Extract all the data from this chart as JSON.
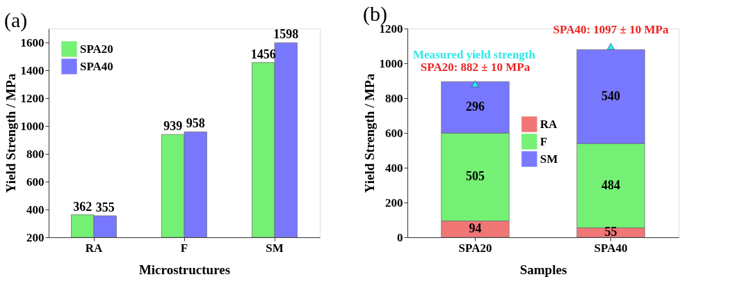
{
  "chart_data": [
    {
      "type": "bar",
      "title": "(a)",
      "xlabel": "Microstructures",
      "ylabel": "Yield Strength / MPa",
      "categories": [
        "RA",
        "F",
        "SM"
      ],
      "series": [
        {
          "name": "SPA20",
          "color": "#66f066",
          "values": [
            362,
            939,
            1456
          ]
        },
        {
          "name": "SPA40",
          "color": "#6a6aff",
          "values": [
            355,
            958,
            1598
          ]
        }
      ],
      "ylim": [
        200,
        1700
      ],
      "yticks": [
        200,
        400,
        600,
        800,
        1000,
        1200,
        1400,
        1600
      ],
      "data_labels": true,
      "legend": "top left",
      "grid": false
    },
    {
      "type": "bar",
      "title": "(b)",
      "xlabel": "Samples",
      "ylabel": "Yield Strength / MPa",
      "categories": [
        "SPA20",
        "SPA40"
      ],
      "stacked": true,
      "series": [
        {
          "name": "RA",
          "color": "#f06868",
          "values": [
            94,
            55
          ]
        },
        {
          "name": "F",
          "color": "#66f066",
          "values": [
            505,
            484
          ]
        },
        {
          "name": "SM",
          "color": "#6a6aff",
          "values": [
            296,
            540
          ]
        },
        {
          "name": "Measured yield strength",
          "type": "scatter",
          "marker": "triangle",
          "color": "#33e6e6",
          "values": [
            882,
            1097
          ],
          "value_labels": [
            null,
            null
          ]
        }
      ],
      "ylim": [
        0,
        1200
      ],
      "yticks": [
        0,
        200,
        400,
        600,
        800,
        1000,
        1200
      ],
      "data_labels": true,
      "legend": "center",
      "grid": false,
      "annotations": [
        {
          "text": "SPA20: 882 ± 10 MPa",
          "x": "SPA20",
          "y": 882
        },
        {
          "text": "SPA40: 1097 ± 10 MPa",
          "x": "SPA40",
          "y": 1097
        }
      ]
    }
  ]
}
